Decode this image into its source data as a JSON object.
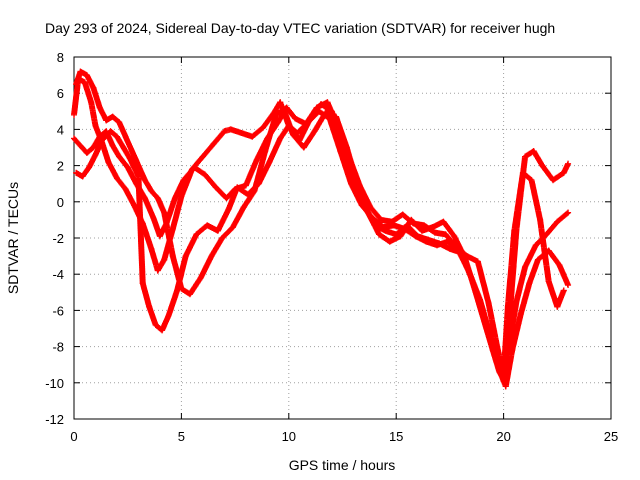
{
  "chart_data": {
    "type": "scatter",
    "title": "Day 293 of 2024, Sidereal Day-to-day VTEC variation (SDTVAR) for receiver hugh",
    "xlabel": "GPS time / hours",
    "ylabel": "SDTVAR / TECUs",
    "xlim": [
      0,
      25
    ],
    "ylim": [
      -12,
      8
    ],
    "xticks": [
      0,
      5,
      10,
      15,
      20,
      25
    ],
    "yticks": [
      -12,
      -10,
      -8,
      -6,
      -4,
      -2,
      0,
      2,
      4,
      6,
      8
    ],
    "grid": true,
    "marker": "plus",
    "color": "#ff0000",
    "series": [
      {
        "x": [
          0.0,
          0.2,
          0.5,
          0.8,
          1.0,
          1.3,
          1.6,
          2.0,
          2.4,
          2.8,
          3.2,
          3.6,
          3.9,
          4.2,
          4.6,
          5.0,
          5.5,
          6.0,
          6.5,
          7.0,
          7.3,
          7.8,
          8.3,
          8.8,
          9.3,
          9.6,
          10.0,
          10.5,
          11.0,
          11.5,
          12.0,
          12.5,
          13.0,
          13.5,
          14.0,
          14.5,
          15.0,
          15.5,
          16.0,
          16.5,
          17.0,
          17.5,
          18.0,
          18.5,
          19.0,
          19.5,
          19.8,
          20.0,
          20.3,
          20.6,
          21.0,
          21.5,
          22.0,
          22.5,
          23.0
        ],
        "y": [
          4.8,
          6.8,
          6.6,
          5.5,
          4.2,
          3.3,
          2.2,
          1.3,
          0.7,
          -0.2,
          -1.2,
          -2.6,
          -3.8,
          -3.2,
          -1.5,
          0.3,
          1.8,
          2.5,
          3.2,
          3.9,
          4.0,
          3.8,
          3.6,
          4.1,
          4.9,
          5.5,
          4.2,
          3.4,
          4.6,
          5.4,
          5.0,
          3.3,
          1.1,
          -0.2,
          -1.3,
          -1.6,
          -1.8,
          -1.3,
          -1.9,
          -2.1,
          -2.3,
          -2.6,
          -2.8,
          -4.2,
          -6.2,
          -8.2,
          -9.4,
          -9.8,
          -7.6,
          -5.5,
          -3.6,
          -2.4,
          -1.8,
          -1.1,
          -0.6
        ]
      },
      {
        "x": [
          0.0,
          0.3,
          0.6,
          0.9,
          1.2,
          1.5,
          1.8,
          2.1,
          2.5,
          2.9,
          3.3,
          3.7,
          4.0,
          4.3,
          4.7,
          5.1,
          5.6,
          6.1,
          6.6,
          7.1,
          7.5,
          8.0,
          8.5,
          9.0,
          9.5,
          9.8,
          10.2,
          10.7,
          11.2,
          11.7,
          12.2,
          12.7,
          13.2,
          13.7,
          14.2,
          14.7,
          15.2,
          15.7,
          16.2,
          16.7,
          17.2,
          17.7,
          18.2,
          18.7,
          19.2,
          19.6,
          19.9,
          20.1,
          20.4,
          20.8,
          21.2,
          21.6,
          22.1,
          22.6,
          23.0
        ],
        "y": [
          3.5,
          3.1,
          2.7,
          3.0,
          3.6,
          3.9,
          3.1,
          2.5,
          1.9,
          1.0,
          0.2,
          -0.9,
          -1.9,
          -1.2,
          0.2,
          1.2,
          1.9,
          1.5,
          0.8,
          0.2,
          0.7,
          0.9,
          2.3,
          3.5,
          4.4,
          5.0,
          3.7,
          3.0,
          3.9,
          4.9,
          4.7,
          3.0,
          0.9,
          -0.6,
          -1.8,
          -2.2,
          -1.9,
          -1.0,
          -1.6,
          -1.4,
          -1.1,
          -1.9,
          -3.1,
          -5.0,
          -7.0,
          -8.6,
          -9.6,
          -10.2,
          -8.2,
          -6.2,
          -4.5,
          -3.2,
          -2.7,
          -3.5,
          -4.6
        ]
      },
      {
        "x": [
          0.1,
          0.4,
          0.7,
          1.0,
          1.3,
          1.7,
          2.0,
          2.3,
          2.6,
          3.0,
          3.2,
          3.5,
          3.8,
          4.1,
          4.4,
          4.8,
          5.2,
          5.7,
          6.2,
          6.7,
          7.2,
          7.6,
          8.1,
          8.6,
          9.1,
          9.6,
          10.0,
          10.4,
          10.9,
          11.4,
          11.9,
          12.4,
          12.9,
          13.4,
          13.9,
          14.4,
          14.9,
          15.4,
          15.9,
          16.4,
          16.9,
          17.4,
          17.9,
          18.4,
          18.9,
          19.4,
          19.8,
          20.0,
          20.3,
          20.6,
          21.0,
          21.4,
          21.8,
          22.3,
          22.8,
          23.0
        ],
        "y": [
          1.6,
          1.4,
          1.9,
          2.6,
          3.4,
          3.9,
          3.6,
          3.0,
          2.4,
          1.4,
          -4.5,
          -5.8,
          -6.8,
          -7.1,
          -6.3,
          -4.9,
          -3.0,
          -1.8,
          -1.3,
          -1.6,
          -0.4,
          0.8,
          0.4,
          1.0,
          2.2,
          3.5,
          4.2,
          3.8,
          4.4,
          5.0,
          4.6,
          2.8,
          1.0,
          -0.2,
          -0.9,
          -1.4,
          -1.3,
          -1.5,
          -1.9,
          -2.2,
          -2.4,
          -2.2,
          -2.7,
          -3.9,
          -5.4,
          -7.5,
          -9.1,
          -9.9,
          -6.0,
          -1.5,
          2.5,
          2.8,
          2.0,
          1.2,
          1.6,
          2.1
        ]
      },
      {
        "x": [
          0.1,
          0.3,
          0.6,
          0.9,
          1.2,
          1.5,
          1.8,
          2.1,
          2.4,
          2.7,
          3.0,
          3.3,
          3.6,
          3.9,
          4.2,
          4.6,
          5.0,
          5.4,
          5.9,
          6.4,
          6.9,
          7.4,
          7.9,
          8.4,
          8.9,
          9.4,
          9.9,
          10.3,
          10.8,
          11.3,
          11.8,
          12.3,
          12.8,
          13.3,
          13.8,
          14.3,
          14.8,
          15.3,
          15.8,
          16.3,
          16.8,
          17.3,
          17.8,
          18.3,
          18.8,
          19.3,
          19.7,
          20.0,
          20.2,
          20.5,
          20.9,
          21.3,
          21.7,
          22.1,
          22.5,
          22.8
        ],
        "y": [
          6.5,
          7.2,
          7.0,
          6.3,
          5.2,
          4.5,
          4.7,
          4.4,
          3.6,
          2.8,
          2.0,
          1.2,
          0.6,
          0.2,
          -0.6,
          -3.0,
          -4.8,
          -5.1,
          -4.2,
          -3.0,
          -2.0,
          -1.4,
          -0.3,
          0.6,
          2.8,
          4.8,
          5.2,
          4.6,
          4.3,
          5.2,
          5.5,
          4.1,
          2.5,
          0.9,
          -0.3,
          -1.0,
          -1.1,
          -0.7,
          -1.2,
          -1.3,
          -1.7,
          -1.8,
          -2.5,
          -3.0,
          -3.3,
          -5.6,
          -8.0,
          -9.6,
          -5.8,
          -1.6,
          1.6,
          1.2,
          -1.0,
          -4.4,
          -5.8,
          -4.9
        ]
      }
    ]
  }
}
